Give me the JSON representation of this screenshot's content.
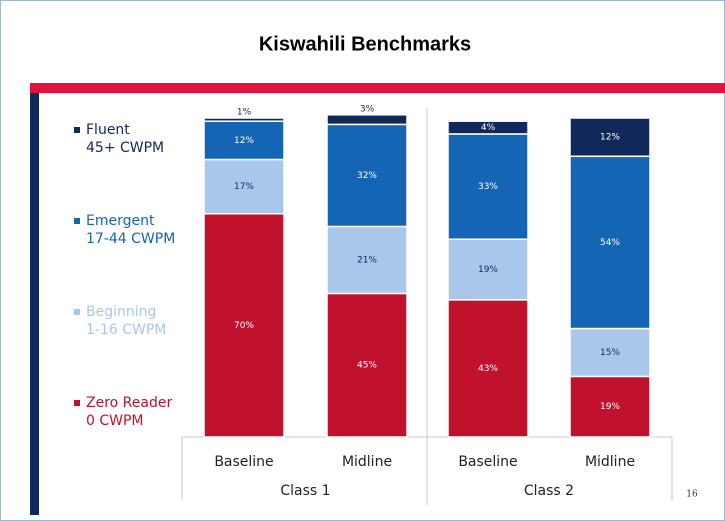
{
  "chart_data": {
    "type": "bar",
    "stacked": true,
    "title": "Kiswahili Benchmarks",
    "categories": [
      "Baseline",
      "Midline",
      "Baseline",
      "Midline"
    ],
    "groups": [
      {
        "name": "Class 1",
        "size": 2
      },
      {
        "name": "Class 2",
        "size": 2
      }
    ],
    "ylim": [
      0,
      100
    ],
    "series": [
      {
        "name": "Zero Reader",
        "range": "0 CWPM",
        "color": "#c0122d",
        "values": [
          70,
          45,
          43,
          19
        ],
        "value_labels": [
          "70%",
          "45%",
          "43%",
          "19%"
        ]
      },
      {
        "name": "Beginning",
        "range": "1-16 CWPM",
        "color": "#a9c7eb",
        "values": [
          17,
          21,
          19,
          15
        ],
        "value_labels": [
          "17%",
          "21%",
          "19%",
          "15%"
        ]
      },
      {
        "name": "Emergent",
        "range": "17-44 CWPM",
        "color": "#1565b5",
        "values": [
          12,
          32,
          33,
          54
        ],
        "value_labels": [
          "12%",
          "32%",
          "33%",
          "54%"
        ]
      },
      {
        "name": "Fluent",
        "range": "45+ CWPM",
        "color": "#10295a",
        "values": [
          1,
          3,
          4,
          12
        ],
        "value_labels": [
          "1%",
          "3%",
          "4%",
          "12%"
        ]
      }
    ],
    "page_number": "16"
  }
}
